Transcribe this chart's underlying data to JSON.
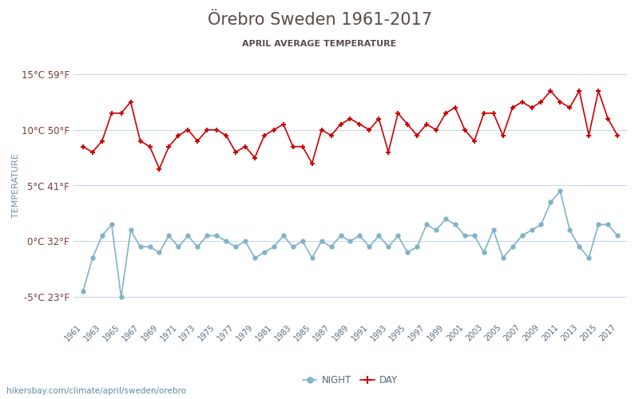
{
  "title": "Örebro Sweden 1961-2017",
  "subtitle": "APRIL AVERAGE TEMPERATURE",
  "ylabel": "TEMPERATURE",
  "xlabel_url": "hikersbay.com/climate/april/sweden/orebro",
  "years": [
    1961,
    1962,
    1963,
    1964,
    1965,
    1966,
    1967,
    1968,
    1969,
    1970,
    1971,
    1972,
    1973,
    1974,
    1975,
    1976,
    1977,
    1978,
    1979,
    1980,
    1981,
    1982,
    1983,
    1984,
    1985,
    1986,
    1987,
    1988,
    1989,
    1990,
    1991,
    1992,
    1993,
    1994,
    1995,
    1996,
    1997,
    1998,
    1999,
    2000,
    2001,
    2002,
    2003,
    2004,
    2005,
    2006,
    2007,
    2008,
    2009,
    2010,
    2011,
    2012,
    2013,
    2014,
    2015,
    2016,
    2017
  ],
  "day_temps": [
    8.5,
    8.0,
    9.0,
    11.5,
    11.5,
    12.5,
    9.0,
    8.5,
    6.5,
    8.5,
    9.5,
    10.0,
    9.0,
    10.0,
    10.0,
    9.5,
    8.0,
    8.5,
    7.5,
    9.5,
    10.0,
    10.5,
    8.5,
    8.5,
    7.0,
    10.0,
    9.5,
    10.5,
    11.0,
    10.5,
    10.0,
    11.0,
    8.0,
    11.5,
    10.5,
    9.5,
    10.5,
    10.0,
    11.5,
    12.0,
    10.0,
    9.0,
    11.5,
    11.5,
    9.5,
    12.0,
    12.5,
    12.0,
    12.5,
    13.5,
    12.5,
    12.0,
    13.5,
    9.5,
    13.5,
    11.0,
    9.5
  ],
  "night_temps": [
    -4.5,
    -1.5,
    0.5,
    1.5,
    -5.0,
    1.0,
    -0.5,
    -0.5,
    -1.0,
    0.5,
    -0.5,
    0.5,
    -0.5,
    0.5,
    0.5,
    0.0,
    -0.5,
    0.0,
    -1.5,
    -1.0,
    -0.5,
    0.5,
    -0.5,
    0.0,
    -1.5,
    0.0,
    -0.5,
    0.5,
    0.0,
    0.5,
    -0.5,
    0.5,
    -0.5,
    0.5,
    -1.0,
    -0.5,
    1.5,
    1.0,
    2.0,
    1.5,
    0.5,
    0.5,
    -1.0,
    1.0,
    -1.5,
    -0.5,
    0.5,
    1.0,
    1.5,
    3.5,
    4.5,
    1.0,
    -0.5,
    -1.5,
    1.5,
    1.5,
    0.5
  ],
  "ylim": [
    -7,
    17
  ],
  "yticks_c": [
    -5,
    0,
    5,
    10,
    15
  ],
  "yticks_f": [
    23,
    32,
    41,
    50,
    59
  ],
  "day_color": "#cc0000",
  "night_color": "#7fb3c8",
  "title_color": "#5a4a4a",
  "subtitle_color": "#5a4a4a",
  "ylabel_color": "#7a8fa6",
  "ytick_color": "#7a3a3a",
  "xtick_color": "#5a6a7a",
  "grid_color": "#c8d8e8",
  "bg_color": "#ffffff",
  "url_color": "#5a8aaa"
}
